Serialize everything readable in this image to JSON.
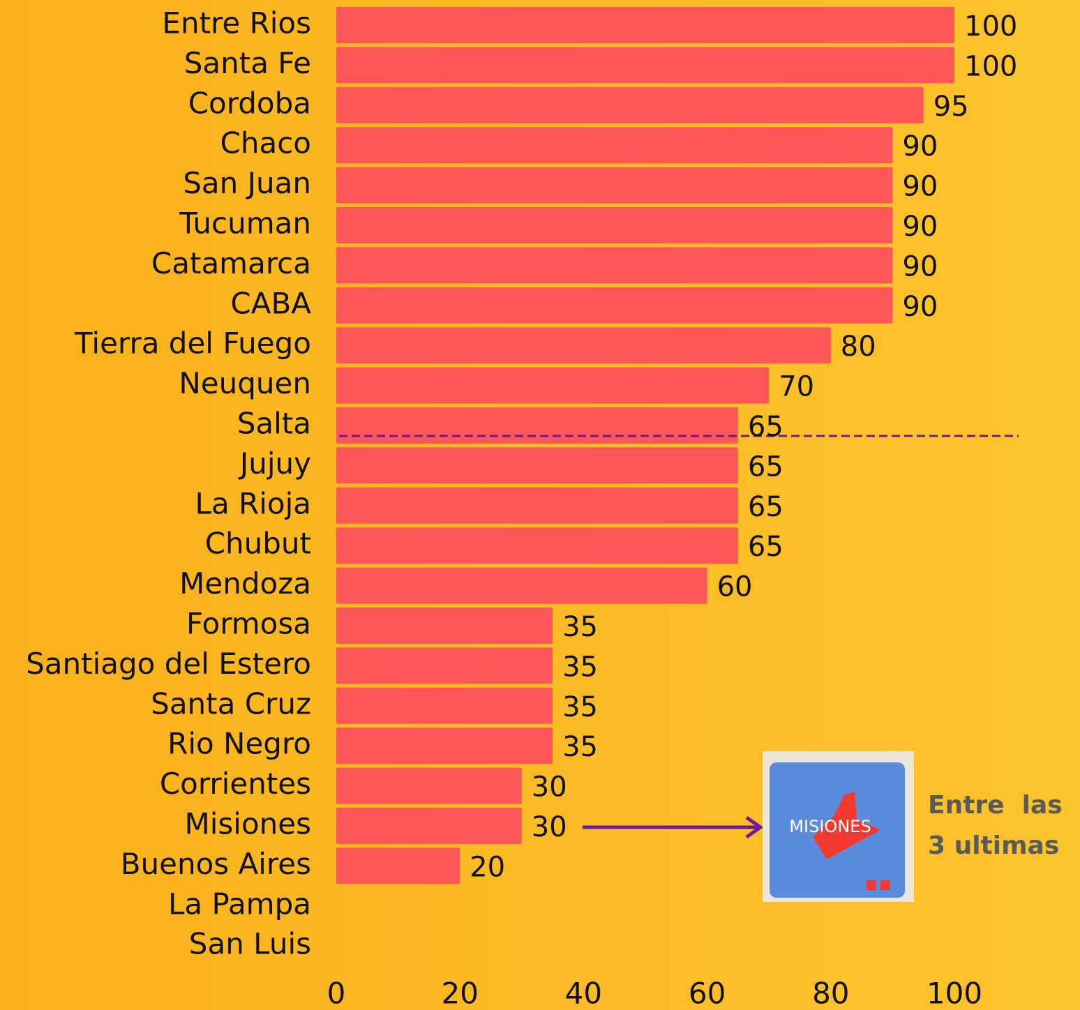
{
  "chart_data": {
    "type": "bar",
    "orientation": "horizontal",
    "categories": [
      "Entre Rios",
      "Santa Fe",
      "Cordoba",
      "Chaco",
      "San Juan",
      "Tucuman",
      "Catamarca",
      "CABA",
      "Tierra del Fuego",
      "Neuquen",
      "Salta",
      "Jujuy",
      "La Rioja",
      "Chubut",
      "Mendoza",
      "Formosa",
      "Santiago del Estero",
      "Santa Cruz",
      "Rio Negro",
      "Corrientes",
      "Misiones",
      "Buenos Aires",
      "La Pampa",
      "San Luis"
    ],
    "values": [
      100,
      100,
      95,
      90,
      90,
      90,
      90,
      90,
      80,
      70,
      65,
      65,
      65,
      65,
      60,
      35,
      35,
      35,
      35,
      30,
      30,
      20,
      null,
      null
    ],
    "color": "#ff5757",
    "xlim": [
      0,
      100
    ],
    "xticks": [
      0,
      20,
      40,
      60,
      80,
      100
    ],
    "grid": false,
    "annotation": [
      "Entre  las",
      "3 ultimas"
    ],
    "logo_text": "MISIONES"
  }
}
